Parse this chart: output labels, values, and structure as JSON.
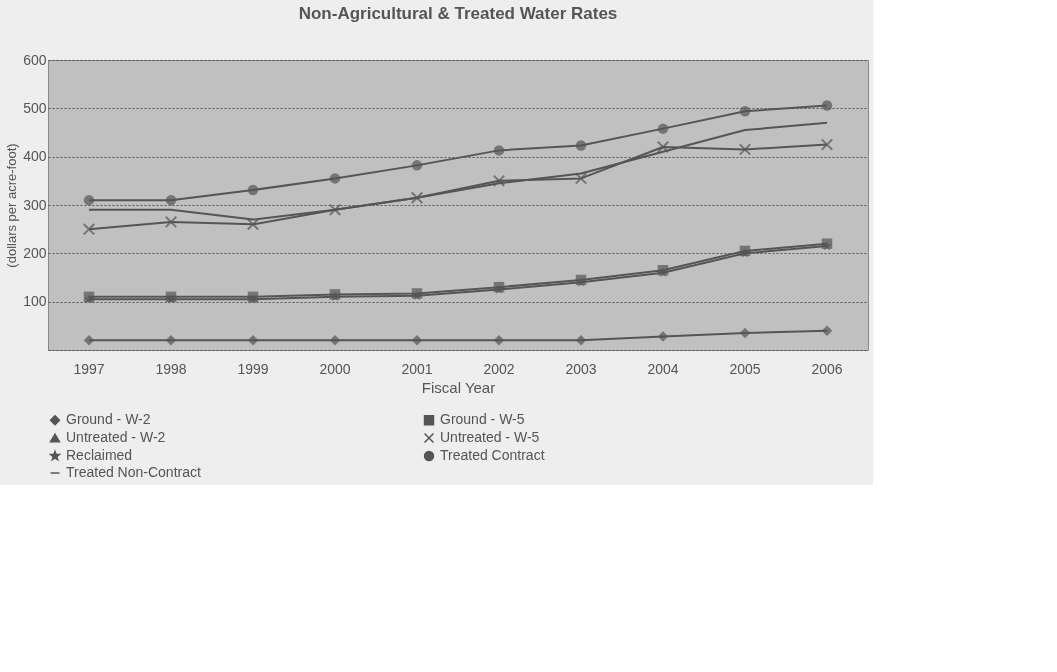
{
  "chart_data": {
    "type": "line",
    "title": "Non-Agricultural & Treated Water Rates",
    "xlabel": "Fiscal Year",
    "ylabel": "(dollars per acre-foot)",
    "categories": [
      "1997",
      "1998",
      "1999",
      "2000",
      "2001",
      "2002",
      "2003",
      "2004",
      "2005",
      "2006"
    ],
    "series": [
      {
        "name": "Ground - W-2",
        "color": "#555555",
        "marker": "diamond",
        "values": [
          20,
          20,
          20,
          20,
          20,
          20,
          20,
          28,
          35,
          40
        ]
      },
      {
        "name": "Ground - W-5",
        "color": "#555555",
        "marker": "square",
        "values": [
          110,
          110,
          110,
          115,
          117,
          130,
          145,
          165,
          205,
          220
        ]
      },
      {
        "name": "Untreated - W-2",
        "color": "#555555",
        "marker": "triangle",
        "values": [
          null,
          null,
          null,
          null,
          null,
          null,
          null,
          null,
          null,
          null
        ]
      },
      {
        "name": "Untreated - W-5",
        "color": "#555555",
        "marker": "cross",
        "values": [
          250,
          265,
          260,
          290,
          315,
          350,
          355,
          420,
          415,
          425
        ]
      },
      {
        "name": "Reclaimed",
        "color": "#555555",
        "marker": "star",
        "values": [
          105,
          105,
          105,
          110,
          112,
          125,
          140,
          160,
          200,
          215
        ]
      },
      {
        "name": "Treated Contract",
        "color": "#555555",
        "marker": "circle",
        "values": [
          310,
          310,
          331,
          355,
          382,
          413,
          423,
          458,
          494,
          506
        ]
      },
      {
        "name": "Treated Non-Contract",
        "color": "#555555",
        "marker": "none",
        "values": [
          290,
          290,
          270,
          290,
          315,
          345,
          365,
          410,
          455,
          470
        ]
      }
    ],
    "ylim": [
      0,
      600
    ],
    "yticks": [
      {
        "value": 0,
        "label": null
      },
      100,
      200,
      300,
      400,
      500,
      600
    ],
    "grid": "y",
    "legend": "bottom",
    "line_style": "solid"
  }
}
